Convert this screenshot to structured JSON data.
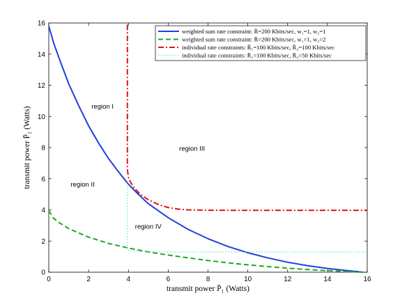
{
  "chart_data": {
    "type": "line",
    "xlabel": "transmit power P̄₁ (Watts)",
    "ylabel": "transmit power P̄₂ (Watts)",
    "xlim": [
      0,
      16
    ],
    "ylim": [
      0,
      16
    ],
    "xticks": [
      0,
      2,
      4,
      6,
      8,
      10,
      12,
      14,
      16
    ],
    "yticks": [
      0,
      2,
      4,
      6,
      8,
      10,
      12,
      14,
      16
    ],
    "grid": false,
    "legend_position": "top-right",
    "series": [
      {
        "name": "weighted sum rate constraint: R̄=200 Kbits/sec, w₁=1, w₂=1",
        "color": "#1f3fdc",
        "style": "solid",
        "x": [
          0,
          0.25,
          0.5,
          1,
          1.5,
          2,
          2.5,
          3,
          3.5,
          4,
          4.5,
          5,
          6,
          7,
          8,
          9,
          10,
          11,
          12,
          13,
          14,
          15,
          15.5,
          15.8
        ],
        "y": [
          15.8,
          14.7,
          13.8,
          12.1,
          10.7,
          9.4,
          8.3,
          7.3,
          6.45,
          5.65,
          5.0,
          4.4,
          3.5,
          2.75,
          2.15,
          1.65,
          1.25,
          0.92,
          0.64,
          0.42,
          0.24,
          0.1,
          0.04,
          0
        ]
      },
      {
        "name": "weighted sum rate constraint: R̄=200 Kbits/sec, w₁=1, w₂=2",
        "color": "#22a722",
        "style": "dashed",
        "x": [
          0,
          0.25,
          0.5,
          1,
          2,
          3,
          4,
          5,
          6,
          7,
          8,
          9,
          10,
          11,
          12,
          13,
          14,
          15,
          15.8
        ],
        "y": [
          3.95,
          3.45,
          3.2,
          2.8,
          2.25,
          1.85,
          1.55,
          1.3,
          1.1,
          0.92,
          0.75,
          0.6,
          0.47,
          0.36,
          0.26,
          0.17,
          0.1,
          0.04,
          0
        ]
      },
      {
        "name": "individual rate constraints: R̄₁=100 Kbits/sec, R̄₂=100 Kbits/sec",
        "color": "#e01414",
        "style": "dashdot",
        "x": [
          3.95,
          3.95,
          4.0,
          4.1,
          4.3,
          4.6,
          5.0,
          5.5,
          6.0,
          6.5,
          7.0,
          8.0,
          10.0,
          12.0,
          14.0,
          16.0
        ],
        "y": [
          15.9,
          6.6,
          6.1,
          5.8,
          5.4,
          5.0,
          4.65,
          4.35,
          4.15,
          4.05,
          4.0,
          3.98,
          3.97,
          3.97,
          3.97,
          3.97
        ]
      },
      {
        "name": "individual rate constraints: R̄₁=100 Kbits/sec, R̄₂=50 Kbits/sec",
        "color": "#66dede",
        "style": "dotted",
        "x": [
          3.95,
          3.95,
          3.96,
          4.1,
          4.5,
          5.0,
          6.0,
          8.0,
          10.0,
          12.0,
          14.0,
          16.0
        ],
        "y": [
          5.7,
          1.6,
          1.45,
          1.35,
          1.32,
          1.3,
          1.3,
          1.3,
          1.3,
          1.3,
          1.3,
          1.3
        ]
      }
    ],
    "annotations": [
      {
        "text": "region I",
        "x": 2.7,
        "y": 10.5
      },
      {
        "text": "region II",
        "x": 1.7,
        "y": 5.5
      },
      {
        "text": "region III",
        "x": 7.2,
        "y": 7.8
      },
      {
        "text": "region IV",
        "x": 5.0,
        "y": 2.8
      }
    ]
  }
}
